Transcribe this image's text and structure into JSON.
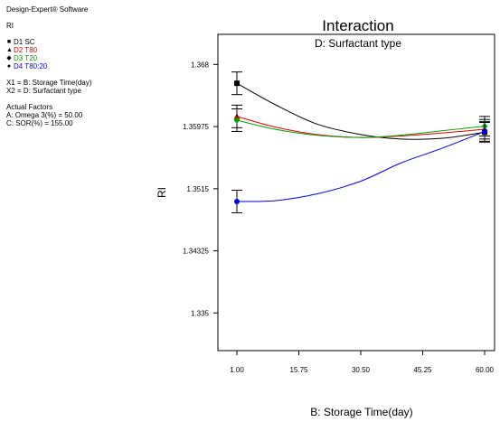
{
  "side": {
    "software": "Design-Expert® Software",
    "response": "RI",
    "legend": [
      {
        "label": "D1 SC",
        "color": "#000000",
        "marker": "square"
      },
      {
        "label": "D2 T80",
        "color": "#e00000",
        "marker": "triangle"
      },
      {
        "label": "D3 T20",
        "color": "#00a000",
        "marker": "diamond"
      },
      {
        "label": "D4 T80:20",
        "color": "#0000e0",
        "marker": "circle"
      }
    ],
    "x1": "X1 = B: Storage Time(day)",
    "x2": "X2 = D: Surfactant type",
    "actual_factors_heading": "Actual Factors",
    "factor_a": "A: Omega 3(%) = 50.00",
    "factor_c": "C: SOR(%) = 155.00"
  },
  "chart_data": {
    "type": "line",
    "title": "Interaction",
    "subtitle": "D: Surfactant type",
    "xlabel": "B: Storage Time(day)",
    "ylabel": "RI",
    "xlim": [
      1.0,
      60.0
    ],
    "ylim": [
      1.33,
      1.372
    ],
    "x_ticks": [
      1.0,
      15.75,
      30.5,
      45.25,
      60.0
    ],
    "x_tick_labels": [
      "1.00",
      "15.75",
      "30.50",
      "45.25",
      "60.00"
    ],
    "y_ticks": [
      1.335,
      1.34325,
      1.3515,
      1.35975,
      1.368
    ],
    "y_tick_labels": [
      "1.335",
      "1.34325",
      "1.3515",
      "1.35975",
      "1.368"
    ],
    "series": [
      {
        "name": "D1 SC",
        "color": "#000000",
        "x": [
          1.0,
          10.0,
          20.0,
          30.5,
          40.0,
          50.0,
          60.0
        ],
        "y": [
          1.3655,
          1.3627,
          1.3601,
          1.3587,
          1.3581,
          1.3582,
          1.359
        ],
        "points": [
          {
            "x": 1.0,
            "y": 1.3655,
            "err": 0.0015
          },
          {
            "x": 60.0,
            "y": 1.359,
            "err": 0.0013
          }
        ]
      },
      {
        "name": "D2 T80",
        "color": "#e00000",
        "x": [
          1.0,
          10.0,
          20.0,
          30.5,
          40.0,
          50.0,
          60.0
        ],
        "y": [
          1.3611,
          1.3597,
          1.3587,
          1.3583,
          1.3585,
          1.3589,
          1.3594
        ],
        "points": [
          {
            "x": 1.0,
            "y": 1.3611,
            "err": 0.0015
          },
          {
            "x": 60.0,
            "y": 1.3594,
            "err": 0.0013
          }
        ]
      },
      {
        "name": "D3 T20",
        "color": "#00a000",
        "x": [
          1.0,
          10.0,
          20.0,
          30.5,
          40.0,
          50.0,
          60.0
        ],
        "y": [
          1.3606,
          1.3594,
          1.3586,
          1.3583,
          1.3586,
          1.3592,
          1.3598
        ],
        "points": [
          {
            "x": 1.0,
            "y": 1.3606,
            "err": 0.0015
          },
          {
            "x": 60.0,
            "y": 1.3598,
            "err": 0.0013
          }
        ]
      },
      {
        "name": "D4 T80:20",
        "color": "#0000e0",
        "x": [
          1.0,
          10.0,
          20.0,
          30.5,
          40.0,
          50.0,
          60.0
        ],
        "y": [
          1.3498,
          1.3499,
          1.3508,
          1.3525,
          1.3549,
          1.3569,
          1.3591
        ],
        "points": [
          {
            "x": 1.0,
            "y": 1.3498,
            "err": 0.0015
          },
          {
            "x": 60.0,
            "y": 1.3591,
            "err": 0.0013
          }
        ]
      }
    ]
  }
}
